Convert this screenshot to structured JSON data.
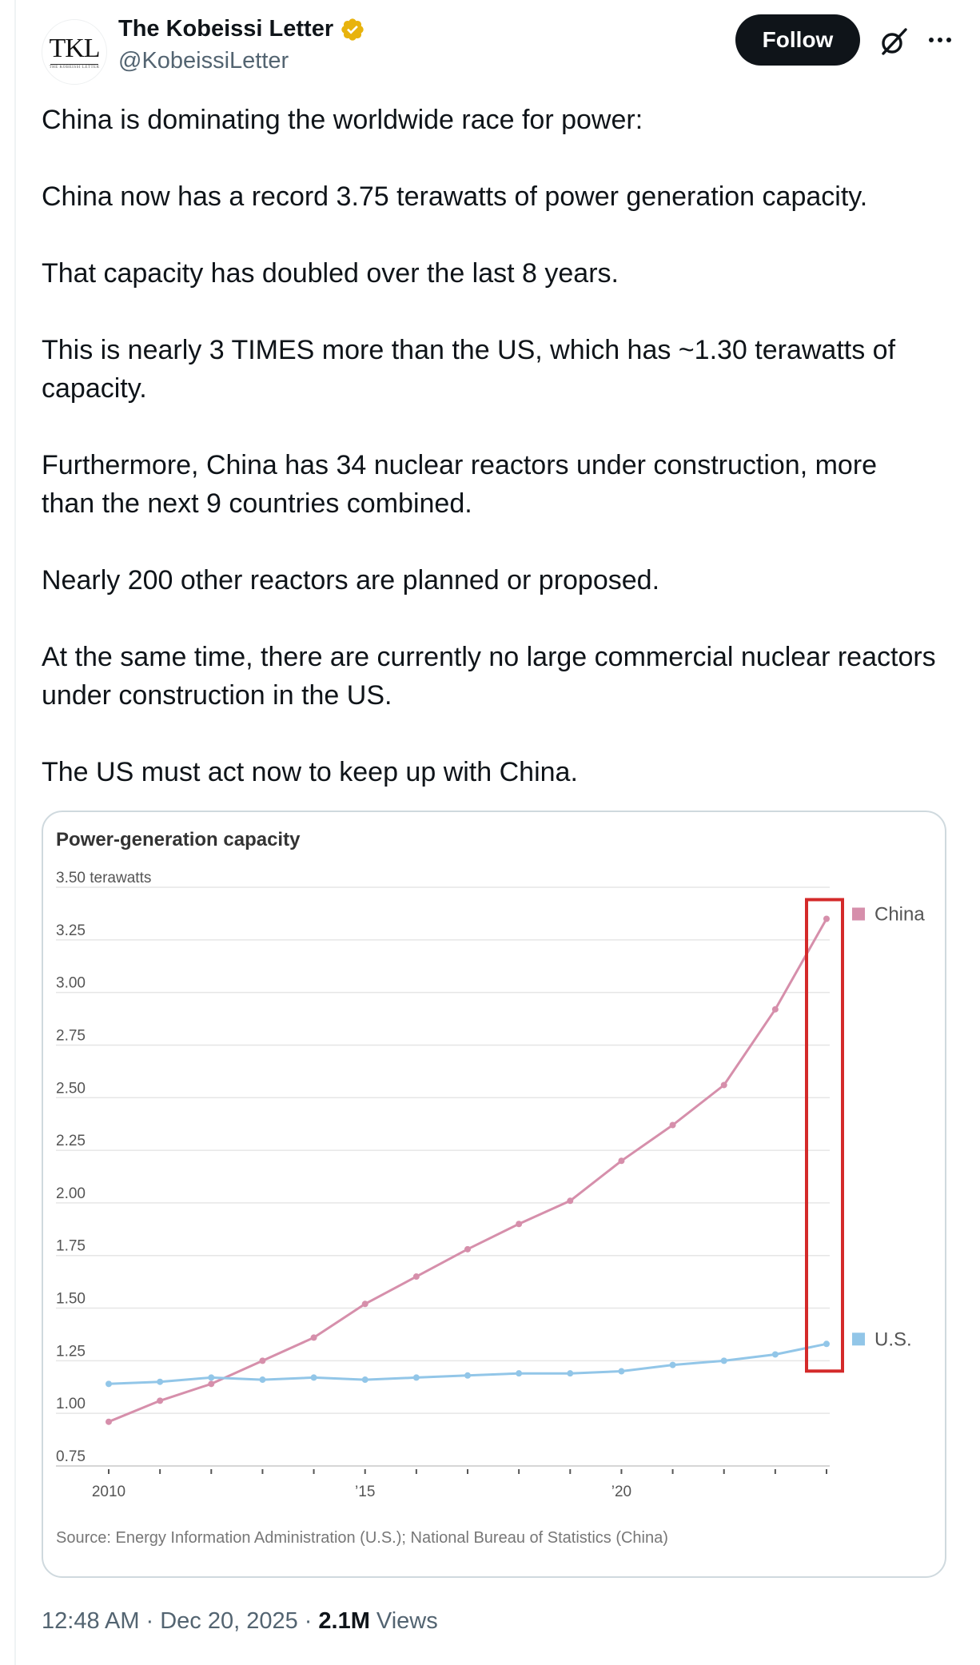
{
  "author": {
    "display_name": "The Kobeissi Letter",
    "handle": "@KobeissiLetter",
    "avatar_monogram": "TKL",
    "avatar_subtext": "THE KOBEISSI LETTER",
    "verified_icon": "verified-badge-icon",
    "verified_color": "#e8b30d"
  },
  "actions": {
    "follow_label": "Follow",
    "grok_icon": "grok-icon",
    "more_icon": "more-options-icon"
  },
  "tweet": {
    "paragraphs": [
      "China is dominating the worldwide race for power:",
      "China now has a record 3.75 terawatts of power generation capacity.",
      "That capacity has doubled over the last 8 years.",
      "This is nearly 3 TIMES more than the US, which has ~1.30 terawatts of capacity.",
      "Furthermore, China has 34 nuclear reactors under construction, more than the next 9 countries combined.",
      "Nearly 200 other reactors are planned or proposed.",
      "At the same time, there are currently no large commercial nuclear reactors under construction in the US.",
      "The US must act now to keep up with China."
    ]
  },
  "chart_data": {
    "type": "line",
    "title": "Power-generation capacity",
    "unit_label": "3.50 terawatts",
    "ylim": [
      0.75,
      3.5
    ],
    "y_ticks": [
      "3.50",
      "3.25",
      "3.00",
      "2.75",
      "2.50",
      "2.25",
      "2.00",
      "1.75",
      "1.50",
      "1.25",
      "1.00",
      "0.75"
    ],
    "x": [
      2010,
      2011,
      2012,
      2013,
      2014,
      2015,
      2016,
      2017,
      2018,
      2019,
      2020,
      2021,
      2022,
      2023,
      2024
    ],
    "x_tick_labels": [
      {
        "year": 2010,
        "label": "2010"
      },
      {
        "year": 2015,
        "label": "’15"
      },
      {
        "year": 2020,
        "label": "’20"
      }
    ],
    "grid": true,
    "series": [
      {
        "name": "China",
        "color": "#d68fab",
        "values": [
          0.96,
          1.06,
          1.14,
          1.25,
          1.36,
          1.52,
          1.65,
          1.78,
          1.9,
          2.01,
          2.2,
          2.37,
          2.56,
          2.92,
          3.35
        ]
      },
      {
        "name": "U.S.",
        "color": "#92c6e8",
        "values": [
          1.14,
          1.15,
          1.17,
          1.16,
          1.17,
          1.16,
          1.17,
          1.18,
          1.19,
          1.19,
          1.2,
          1.23,
          1.25,
          1.28,
          1.33
        ]
      }
    ],
    "highlight": {
      "year": 2024,
      "color": "#d42a2a"
    },
    "source": "Source: Energy Information Administration (U.S.); National Bureau of Statistics (China)"
  },
  "meta": {
    "time": "12:48 AM",
    "separator": "·",
    "date": "Dec 20, 2025",
    "views_count": "2.1M",
    "views_label": "Views"
  }
}
